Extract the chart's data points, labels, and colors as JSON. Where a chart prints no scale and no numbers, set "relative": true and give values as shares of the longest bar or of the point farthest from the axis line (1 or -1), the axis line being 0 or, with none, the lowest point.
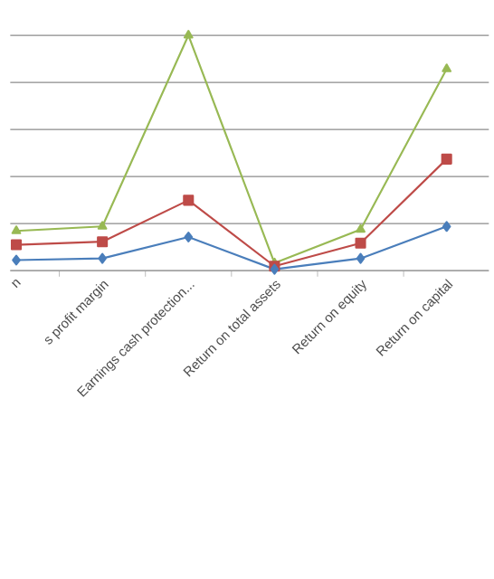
{
  "chart_data": {
    "type": "line",
    "relative": true,
    "grid": "y",
    "categories": [
      "n",
      "s profit margin",
      "Earnings cash protection...",
      "Return on total assets",
      "Return on equity",
      "Return on capital"
    ],
    "series": [
      {
        "color": "#4a7ebb",
        "marker": "diamond",
        "values": [
          0.045,
          0.052,
          0.143,
          0.006,
          0.052,
          0.188
        ]
      },
      {
        "color": "#be4b48",
        "marker": "square",
        "values": [
          0.11,
          0.123,
          0.299,
          0.019,
          0.117,
          0.474
        ]
      },
      {
        "color": "#98b954",
        "marker": "triangle",
        "values": [
          0.169,
          0.188,
          1,
          0.032,
          0.175,
          0.857
        ]
      }
    ]
  }
}
